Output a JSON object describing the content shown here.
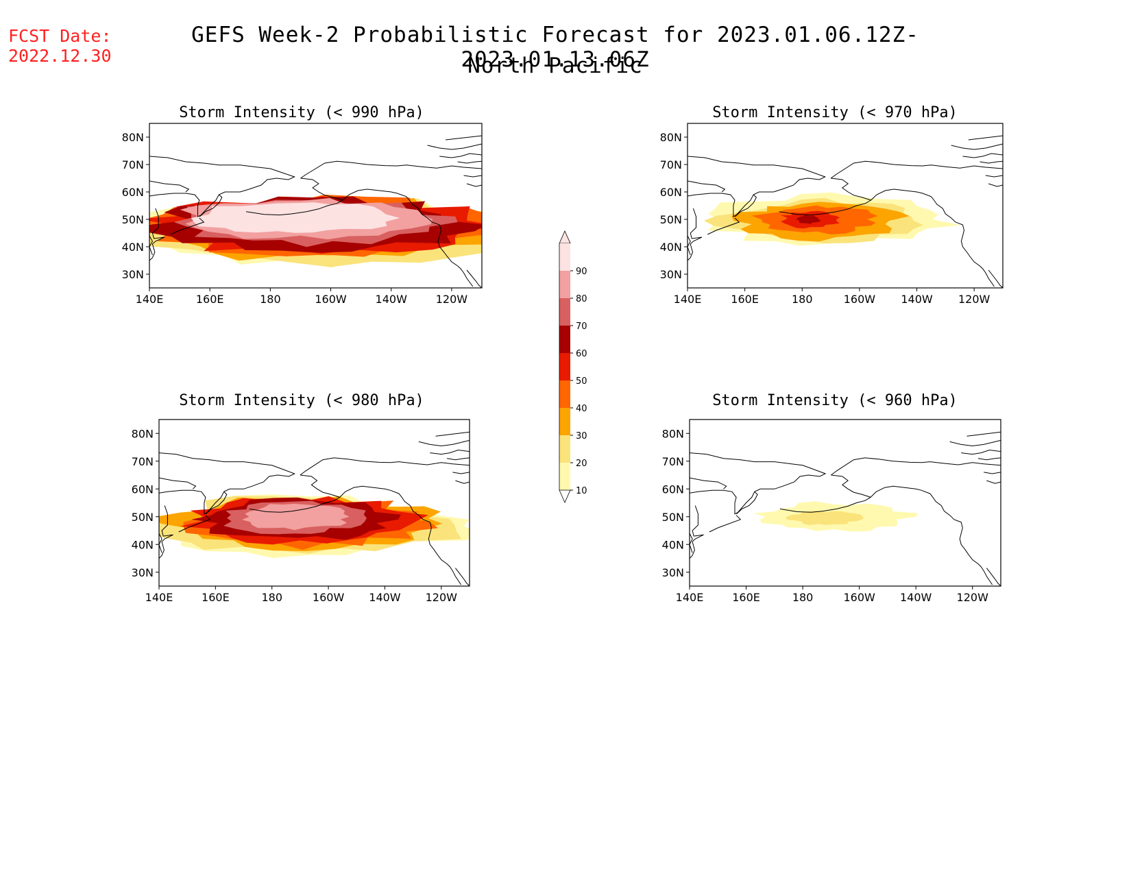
{
  "header": {
    "fcst_label": "FCST Date:",
    "fcst_date": "2022.12.30",
    "title": "GEFS Week-2 Probabilistic Forecast for 2023.01.06.12Z-2023.01.13.06Z",
    "subtitle": "North Pacific"
  },
  "panels": [
    {
      "title": "Storm Intensity (< 990 hPa)",
      "max_level": 90
    },
    {
      "title": "Storm Intensity (< 970 hPa)",
      "max_level": 70
    },
    {
      "title": "Storm Intensity (< 980 hPa)",
      "max_level": 90
    },
    {
      "title": "Storm Intensity (< 960 hPa)",
      "max_level": 30
    }
  ],
  "axes": {
    "lon_labels": [
      "140E",
      "160E",
      "180",
      "160W",
      "140W",
      "120W"
    ],
    "lat_labels": [
      "80N",
      "70N",
      "60N",
      "50N",
      "40N",
      "30N"
    ]
  },
  "colorbar": {
    "levels": [
      "10",
      "20",
      "30",
      "40",
      "50",
      "60",
      "70",
      "80",
      "90"
    ],
    "colors": [
      "#fff9b0",
      "#fae37a",
      "#fca400",
      "#ff6600",
      "#e81a00",
      "#a60000",
      "#d96060",
      "#f2a0a0",
      "#fde2e2"
    ]
  }
}
